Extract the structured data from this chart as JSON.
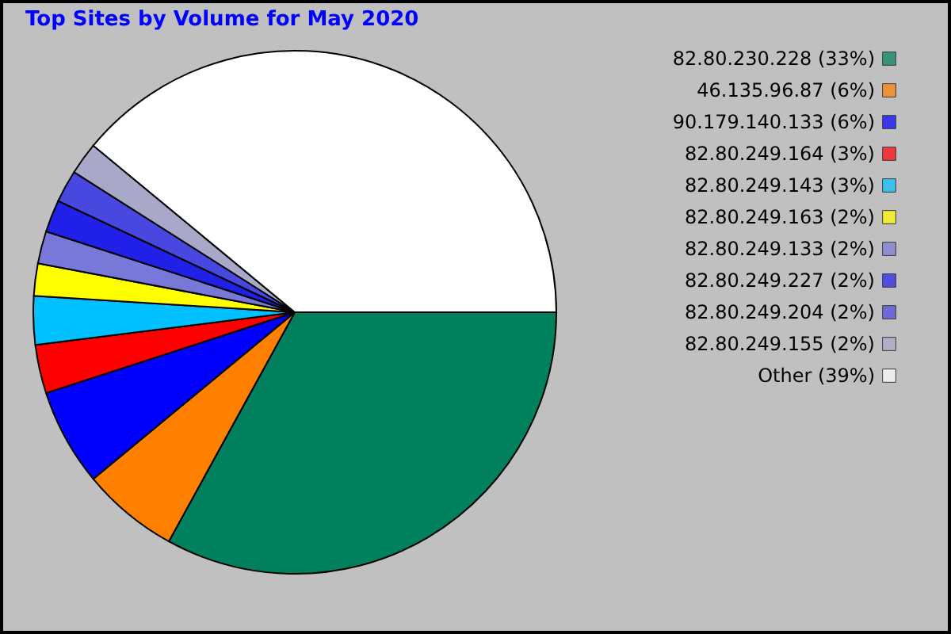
{
  "chart_data": {
    "type": "pie",
    "title": "Top Sites by Volume for May 2020",
    "legend": "right",
    "categories": [
      "82.80.230.228",
      "46.135.96.87",
      "90.179.140.133",
      "82.80.249.164",
      "82.80.249.143",
      "82.80.249.163",
      "82.80.249.133",
      "82.80.249.227",
      "82.80.249.204",
      "82.80.249.155",
      "Other"
    ],
    "values": [
      33,
      6,
      6,
      3,
      3,
      2,
      2,
      2,
      2,
      2,
      39
    ],
    "value_labels": [
      "(33%)",
      "(6%)",
      "(6%)",
      "(3%)",
      "(3%)",
      "(2%)",
      "(2%)",
      "(2%)",
      "(2%)",
      "(2%)",
      "(39%)"
    ],
    "colors": [
      "#00805c",
      "#ff8000",
      "#0000ff",
      "#ff0000",
      "#00c0ff",
      "#ffff00",
      "#7878d8",
      "#2020e8",
      "#4848e0",
      "#a8a8c8",
      "#ffffff"
    ]
  }
}
